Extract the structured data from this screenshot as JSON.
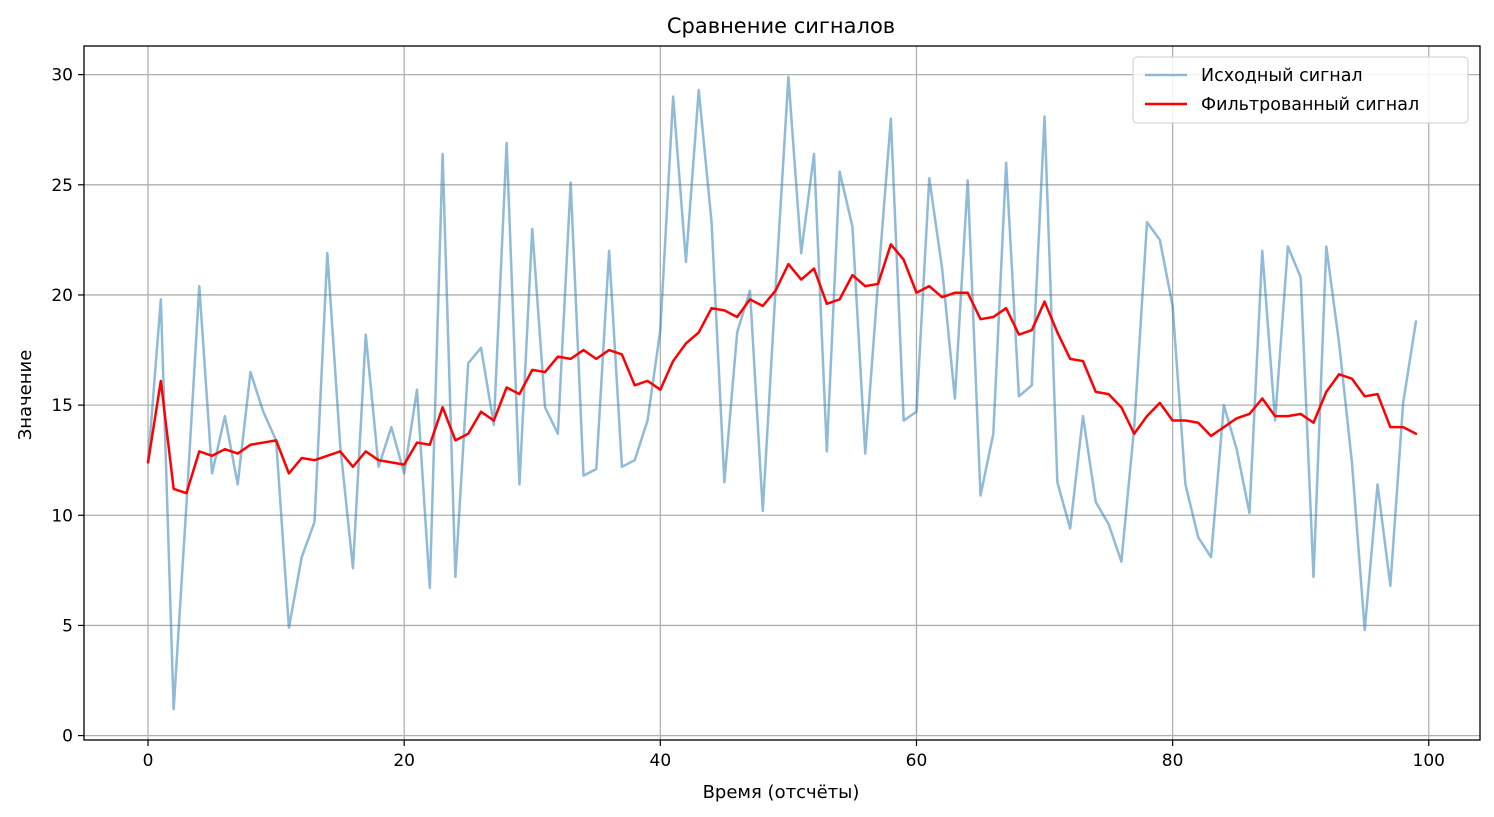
{
  "chart_data": {
    "type": "line",
    "title": "Сравнение сигналов",
    "xlabel": "Время (отсчёты)",
    "ylabel": "Значение",
    "xlim": [
      -5,
      104
    ],
    "ylim": [
      -0.2,
      31.3
    ],
    "xticks": [
      0,
      20,
      40,
      60,
      80,
      100
    ],
    "yticks": [
      0,
      5,
      10,
      15,
      20,
      25,
      30
    ],
    "grid": true,
    "legend_position": "top-right",
    "x": [
      0,
      1,
      2,
      3,
      4,
      5,
      6,
      7,
      8,
      9,
      10,
      11,
      12,
      13,
      14,
      15,
      16,
      17,
      18,
      19,
      20,
      21,
      22,
      23,
      24,
      25,
      26,
      27,
      28,
      29,
      30,
      31,
      32,
      33,
      34,
      35,
      36,
      37,
      38,
      39,
      40,
      41,
      42,
      43,
      44,
      45,
      46,
      47,
      48,
      49,
      50,
      51,
      52,
      53,
      54,
      55,
      56,
      57,
      58,
      59,
      60,
      61,
      62,
      63,
      64,
      65,
      66,
      67,
      68,
      69,
      70,
      71,
      72,
      73,
      74,
      75,
      76,
      77,
      78,
      79,
      80,
      81,
      82,
      83,
      84,
      85,
      86,
      87,
      88,
      89,
      90,
      91,
      92,
      93,
      94,
      95,
      96,
      97,
      98,
      99
    ],
    "series": [
      {
        "name": "Исходный сигнал",
        "color": "#1f77b4",
        "opacity": 0.5,
        "values": [
          12.4,
          19.8,
          1.2,
          10.5,
          20.4,
          11.9,
          14.5,
          11.4,
          16.5,
          14.7,
          13.4,
          4.9,
          8.1,
          9.7,
          21.9,
          13.2,
          7.6,
          18.2,
          12.2,
          14.0,
          11.9,
          15.7,
          6.7,
          26.4,
          7.2,
          16.9,
          17.6,
          14.1,
          26.9,
          11.4,
          23.0,
          14.9,
          13.7,
          25.1,
          11.8,
          12.1,
          22.0,
          12.2,
          12.5,
          14.3,
          18.4,
          29.0,
          21.5,
          29.3,
          23.3,
          11.5,
          18.3,
          20.2,
          10.2,
          20.3,
          29.9,
          21.9,
          26.4,
          12.9,
          25.6,
          23.1,
          12.8,
          20.6,
          28.0,
          14.3,
          14.7,
          25.3,
          21.2,
          15.3,
          25.2,
          10.9,
          13.7,
          26.0,
          15.4,
          15.9,
          28.1,
          11.5,
          9.4,
          14.5,
          10.6,
          9.6,
          7.9,
          14.0,
          23.3,
          22.5,
          19.5,
          11.4,
          9.0,
          8.1,
          15.0,
          13.0,
          10.1,
          22.0,
          14.3,
          22.2,
          20.8,
          7.2,
          22.2,
          17.8,
          12.4,
          4.8,
          11.4,
          6.8,
          15.1,
          18.8
        ]
      },
      {
        "name": "Фильтрованный сигнал",
        "color": "#ff0000",
        "opacity": 1.0,
        "values": [
          12.4,
          16.1,
          11.2,
          11.0,
          12.9,
          12.7,
          13.0,
          12.8,
          13.2,
          13.3,
          13.4,
          11.9,
          12.6,
          12.5,
          12.7,
          12.9,
          12.2,
          12.9,
          12.5,
          12.4,
          12.3,
          13.3,
          13.2,
          14.9,
          13.4,
          13.7,
          14.7,
          14.3,
          15.8,
          15.5,
          16.6,
          16.5,
          17.2,
          17.1,
          17.5,
          17.1,
          17.5,
          17.3,
          15.9,
          16.1,
          15.7,
          17.0,
          17.8,
          18.3,
          19.4,
          19.3,
          19.0,
          19.8,
          19.5,
          20.2,
          21.4,
          20.7,
          21.2,
          19.6,
          19.8,
          20.9,
          20.4,
          20.5,
          22.3,
          21.6,
          20.1,
          20.4,
          19.9,
          20.1,
          20.1,
          18.9,
          19.0,
          19.4,
          18.2,
          18.4,
          19.7,
          18.3,
          17.1,
          17.0,
          15.6,
          15.5,
          14.9,
          13.7,
          14.5,
          15.1,
          14.3,
          14.3,
          14.2,
          13.6,
          14.0,
          14.4,
          14.6,
          15.3,
          14.5,
          14.5,
          14.6,
          14.2,
          15.6,
          16.4,
          16.2,
          15.4,
          15.5,
          14.0,
          14.0,
          13.7
        ]
      }
    ]
  }
}
